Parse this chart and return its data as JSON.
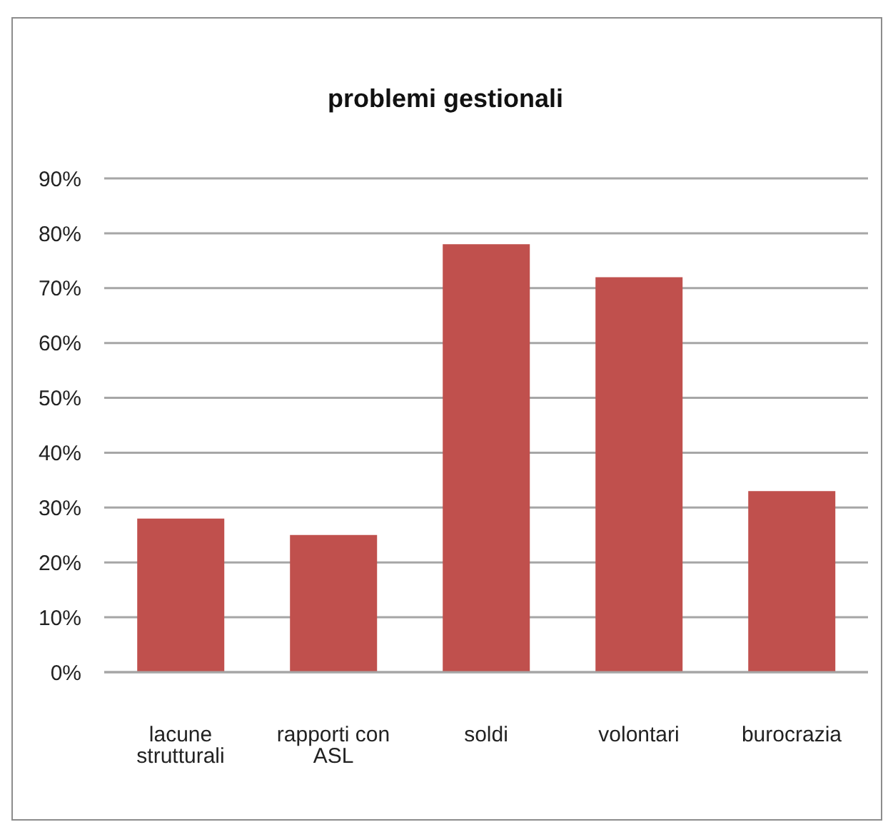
{
  "chart_data": {
    "type": "bar",
    "title": "problemi gestionali",
    "categories": [
      "lacune strutturali",
      "rapporti con ASL",
      "soldi",
      "volontari",
      "burocrazia"
    ],
    "values": [
      28,
      25,
      78,
      72,
      33
    ],
    "color": "#c0504d",
    "ylim": [
      0,
      90
    ],
    "yticks": [
      {
        "value": 0,
        "label": "0%"
      },
      {
        "value": 10,
        "label": "10%"
      },
      {
        "value": 20,
        "label": "20%"
      },
      {
        "value": 30,
        "label": "30%"
      },
      {
        "value": 40,
        "label": "40%"
      },
      {
        "value": 50,
        "label": "50%"
      },
      {
        "value": 60,
        "label": "60%"
      },
      {
        "value": 70,
        "label": "70%"
      },
      {
        "value": 80,
        "label": "80%"
      },
      {
        "value": 90,
        "label": "90%"
      }
    ],
    "grid": "y"
  }
}
